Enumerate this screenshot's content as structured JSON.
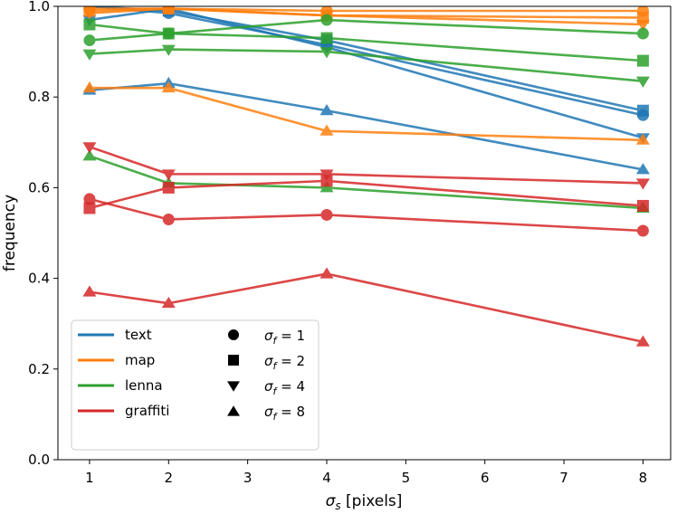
{
  "chart_data": {
    "type": "line",
    "title": "",
    "xlabel": "σ_s [pixels]",
    "ylabel": "frequency",
    "xlim": [
      0.6,
      8.35
    ],
    "ylim": [
      0.0,
      1.0
    ],
    "xticks": [
      1,
      2,
      3,
      4,
      5,
      6,
      7,
      8
    ],
    "yticks": [
      0.0,
      0.2,
      0.4,
      0.6,
      0.8,
      1.0
    ],
    "grid": false,
    "legend_position": "bottom-left",
    "x": [
      1,
      2,
      4,
      8
    ],
    "colors": {
      "text": "#1f77b4",
      "map": "#ff7f0e",
      "lenna": "#2ca02c",
      "graffiti": "#d62728"
    },
    "color_legend": [
      "text",
      "map",
      "lenna",
      "graffiti"
    ],
    "marker_legend": [
      {
        "marker": "circle",
        "sf": "1"
      },
      {
        "marker": "square",
        "sf": "2"
      },
      {
        "marker": "triangle-down",
        "sf": "4"
      },
      {
        "marker": "triangle-up",
        "sf": "8"
      }
    ],
    "series": [
      {
        "image": "text",
        "marker": "circle",
        "values": [
          1.0,
          0.985,
          0.915,
          0.76
        ]
      },
      {
        "image": "text",
        "marker": "square",
        "values": [
          1.0,
          0.99,
          0.925,
          0.77
        ]
      },
      {
        "image": "text",
        "marker": "triangle-down",
        "values": [
          0.97,
          0.995,
          0.91,
          0.71
        ]
      },
      {
        "image": "text",
        "marker": "triangle-up",
        "values": [
          0.815,
          0.83,
          0.77,
          0.64
        ]
      },
      {
        "image": "map",
        "marker": "circle",
        "values": [
          0.995,
          0.995,
          0.99,
          0.99
        ]
      },
      {
        "image": "map",
        "marker": "square",
        "values": [
          0.99,
          0.995,
          0.98,
          0.975
        ]
      },
      {
        "image": "map",
        "marker": "triangle-down",
        "values": [
          0.985,
          0.995,
          0.98,
          0.96
        ]
      },
      {
        "image": "map",
        "marker": "triangle-up",
        "values": [
          0.82,
          0.82,
          0.725,
          0.705
        ]
      },
      {
        "image": "lenna",
        "marker": "circle",
        "values": [
          0.925,
          0.94,
          0.97,
          0.94
        ]
      },
      {
        "image": "lenna",
        "marker": "square",
        "values": [
          0.96,
          0.94,
          0.93,
          0.88
        ]
      },
      {
        "image": "lenna",
        "marker": "triangle-down",
        "values": [
          0.895,
          0.905,
          0.9,
          0.835
        ]
      },
      {
        "image": "lenna",
        "marker": "triangle-up",
        "values": [
          0.67,
          0.61,
          0.6,
          0.555
        ]
      },
      {
        "image": "graffiti",
        "marker": "circle",
        "values": [
          0.575,
          0.53,
          0.54,
          0.505
        ]
      },
      {
        "image": "graffiti",
        "marker": "square",
        "values": [
          0.555,
          0.6,
          0.615,
          0.56
        ]
      },
      {
        "image": "graffiti",
        "marker": "triangle-down",
        "values": [
          0.69,
          0.63,
          0.63,
          0.61
        ]
      },
      {
        "image": "graffiti",
        "marker": "triangle-up",
        "values": [
          0.37,
          0.345,
          0.41,
          0.26
        ]
      }
    ]
  }
}
